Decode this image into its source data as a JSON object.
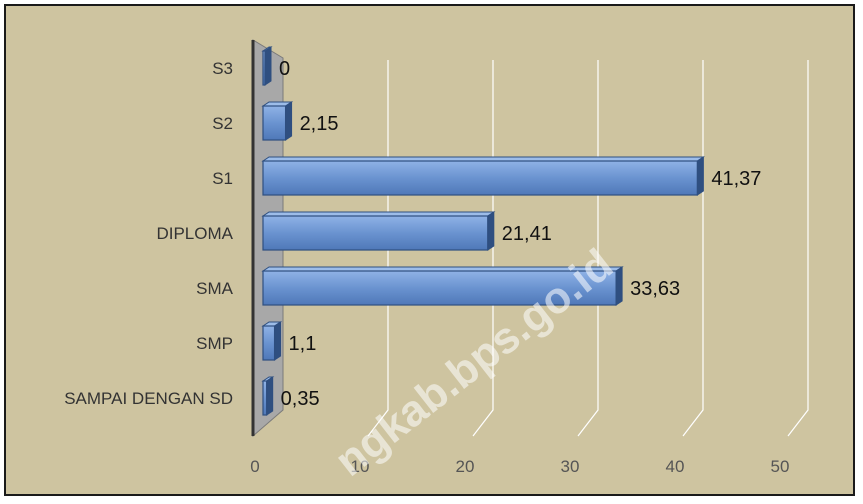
{
  "chart_data": {
    "type": "bar",
    "orientation": "horizontal",
    "categories": [
      "S3",
      "S2",
      "S1",
      "DIPLOMA",
      "SMA",
      "SMP",
      "SAMPAI DENGAN SD"
    ],
    "values": [
      0,
      2.15,
      41.37,
      21.41,
      33.63,
      1.1,
      0.35
    ],
    "value_labels": [
      "0",
      "2,15",
      "41,37",
      "21,41",
      "33,63",
      "1,1",
      "0,35"
    ],
    "title": "",
    "xlabel": "",
    "ylabel": "",
    "xlim": [
      0,
      50
    ],
    "x_ticks": [
      "0",
      "10",
      "20",
      "30",
      "40",
      "50"
    ],
    "grid": true,
    "legend": "none",
    "style": "3d",
    "colors": {
      "bar": "#5b86c6",
      "bar_dark": "#2f4f80",
      "background": "#cec4a0",
      "wall": "#a8a8a8",
      "grid": "#ffffff"
    }
  },
  "watermark": "ngkab.bps.go.id"
}
